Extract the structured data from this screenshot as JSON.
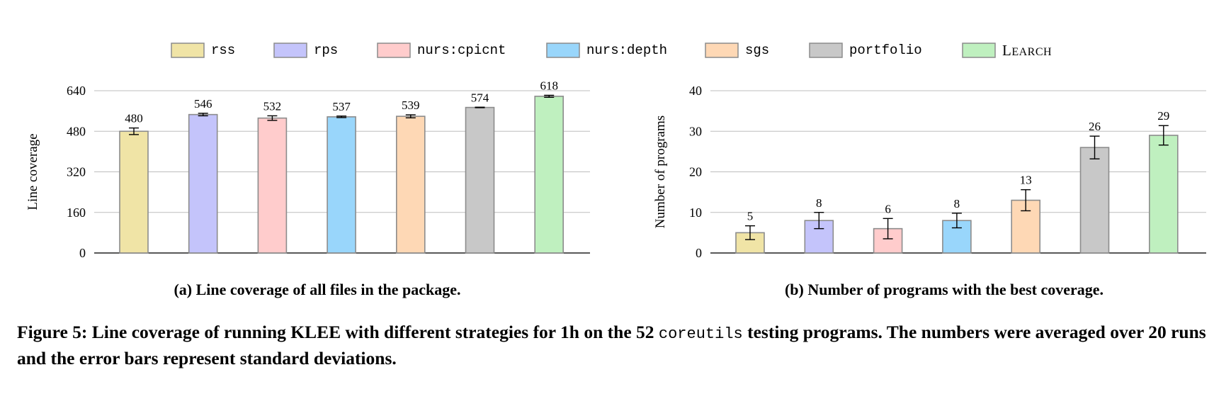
{
  "legend": [
    {
      "label": "rss",
      "color": "#f0e4a6",
      "style": "mono"
    },
    {
      "label": "rps",
      "color": "#c4c4fb",
      "style": "mono"
    },
    {
      "label": "nurs:cpicnt",
      "color": "#ffcccc",
      "style": "mono"
    },
    {
      "label": "nurs:depth",
      "color": "#99d6fb",
      "style": "mono"
    },
    {
      "label": "sgs",
      "color": "#fed8b5",
      "style": "mono"
    },
    {
      "label": "portfolio",
      "color": "#c8c8c8",
      "style": "mono"
    },
    {
      "label": "Learch",
      "color": "#bff0bf",
      "style": "smallcaps"
    }
  ],
  "chart_data": [
    {
      "type": "bar",
      "ylabel": "Line coverage",
      "subcaption": "(a) Line coverage of all files in the package.",
      "ylim": [
        0,
        640
      ],
      "yticks": [
        "0",
        "160",
        "320",
        "480",
        "640"
      ],
      "grid": true,
      "categories": [
        "rss",
        "rps",
        "nurs:cpicnt",
        "nurs:depth",
        "sgs",
        "portfolio",
        "Learch"
      ],
      "values": [
        480,
        546,
        532,
        537,
        539,
        574,
        618
      ],
      "errors": [
        13,
        5,
        9,
        3,
        6,
        1,
        4
      ],
      "data_labels": [
        "480",
        "546",
        "532",
        "537",
        "539",
        "574",
        "618"
      ]
    },
    {
      "type": "bar",
      "ylabel": "Number of programs",
      "subcaption": "(b) Number of programs with the best coverage.",
      "ylim": [
        0,
        40
      ],
      "yticks": [
        "0",
        "10",
        "20",
        "30",
        "40"
      ],
      "grid": true,
      "categories": [
        "rss",
        "rps",
        "nurs:cpicnt",
        "nurs:depth",
        "sgs",
        "portfolio",
        "Learch"
      ],
      "values": [
        5,
        8,
        6,
        8,
        13,
        26,
        29
      ],
      "errors": [
        1.7,
        2,
        2.5,
        1.8,
        2.6,
        2.8,
        2.4
      ],
      "data_labels": [
        "5",
        "8",
        "6",
        "8",
        "13",
        "26",
        "29"
      ]
    }
  ],
  "caption": {
    "prefix": "Figure 5: Line coverage of running KLEE with different strategies for 1h on the 52 ",
    "code": "coreutils",
    "suffix": " testing programs. The numbers were averaged over 20 runs and the error bars represent standard deviations."
  }
}
